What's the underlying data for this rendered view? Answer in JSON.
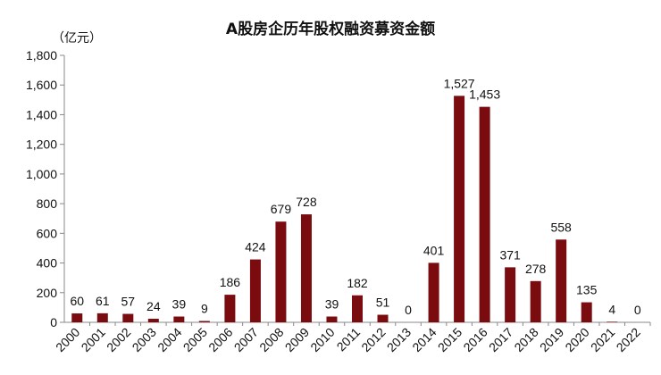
{
  "chart_data": {
    "type": "bar",
    "title": "A股房企历年股权融资募资金额",
    "unit_label": "（亿元）",
    "xlabel": "",
    "ylabel": "",
    "ylim": [
      0,
      1800
    ],
    "yticks": [
      0,
      200,
      400,
      600,
      800,
      1000,
      1200,
      1400,
      1600,
      1800
    ],
    "ytick_labels": [
      "0",
      "200",
      "400",
      "600",
      "800",
      "1,000",
      "1,200",
      "1,400",
      "1,600",
      "1,800"
    ],
    "grid": false,
    "legend": "none",
    "bar_color": "#7a0c10",
    "categories": [
      "2000",
      "2001",
      "2002",
      "2003",
      "2004",
      "2005",
      "2006",
      "2007",
      "2008",
      "2009",
      "2010",
      "2011",
      "2012",
      "2013",
      "2014",
      "2015",
      "2016",
      "2017",
      "2018",
      "2019",
      "2020",
      "2021",
      "2022"
    ],
    "values": [
      60,
      61,
      57,
      24,
      39,
      9,
      186,
      424,
      679,
      728,
      39,
      182,
      51,
      0,
      401,
      1527,
      1453,
      371,
      278,
      558,
      135,
      4,
      0
    ],
    "data_labels": [
      "60",
      "61",
      "57",
      "24",
      "39",
      "9",
      "186",
      "424",
      "679",
      "728",
      "39",
      "182",
      "51",
      "0",
      "401",
      "1,527",
      "1,453",
      "371",
      "278",
      "558",
      "135",
      "4",
      "0"
    ]
  }
}
